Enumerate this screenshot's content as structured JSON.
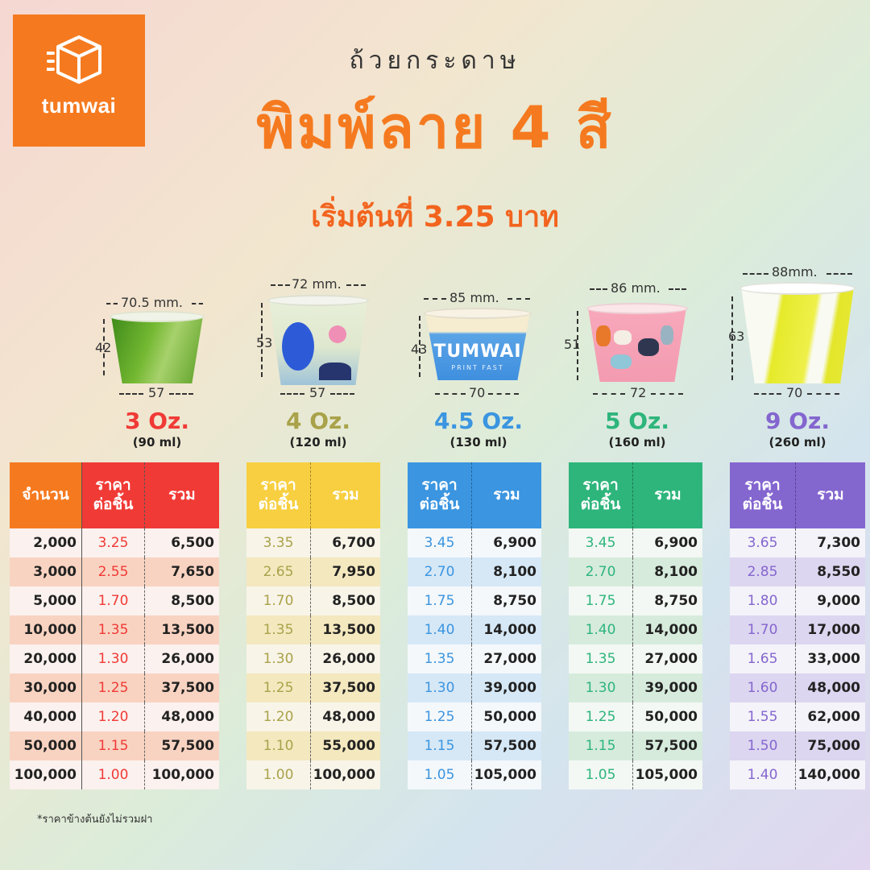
{
  "logo": {
    "text": "tumwai"
  },
  "heading": {
    "line1": "ถ้วยกระดาษ",
    "line2": "พิมพ์ลาย 4 สี",
    "line3": "เริ่มต้นที่ 3.25 บาท"
  },
  "colors": {
    "brand": "#f57a1f",
    "c3": "#f03a36",
    "c4": "#a9a24a",
    "c45": "#3b95e0",
    "c5": "#2eb57c",
    "c9": "#8466cf"
  },
  "cups": [
    {
      "top_dim": "70.5 mm.",
      "height_dim": "42",
      "bottom_dim": "57",
      "oz": "3 Oz.",
      "ml": "(90 ml)"
    },
    {
      "top_dim": "72 mm.",
      "height_dim": "53",
      "bottom_dim": "57",
      "oz": "4 Oz.",
      "ml": "(120 ml)"
    },
    {
      "top_dim": "85 mm.",
      "height_dim": "43",
      "bottom_dim": "70",
      "oz": "4.5 Oz.",
      "ml": "(130 ml)",
      "print": "TUMWAI",
      "print_sub": "PRINT FAST"
    },
    {
      "top_dim": "86 mm.",
      "height_dim": "51",
      "bottom_dim": "72",
      "oz": "5 Oz.",
      "ml": "(160 ml)"
    },
    {
      "top_dim": "88mm.",
      "height_dim": "63",
      "bottom_dim": "70",
      "oz": "9 Oz.",
      "ml": "(260 ml)"
    }
  ],
  "table_headers": {
    "qty": "จำนวน",
    "price": "ราคา\nต่อชิ้น",
    "total": "รวม"
  },
  "quantities": [
    "2,000",
    "3,000",
    "5,000",
    "10,000",
    "20,000",
    "30,000",
    "40,000",
    "50,000",
    "100,000"
  ],
  "tables": [
    {
      "prices": [
        "3.25",
        "2.55",
        "1.70",
        "1.35",
        "1.30",
        "1.25",
        "1.20",
        "1.15",
        "1.00"
      ],
      "totals": [
        "6,500",
        "7,650",
        "8,500",
        "13,500",
        "26,000",
        "37,500",
        "48,000",
        "57,500",
        "100,000"
      ]
    },
    {
      "prices": [
        "3.35",
        "2.65",
        "1.70",
        "1.35",
        "1.30",
        "1.25",
        "1.20",
        "1.10",
        "1.00"
      ],
      "totals": [
        "6,700",
        "7,950",
        "8,500",
        "13,500",
        "26,000",
        "37,500",
        "48,000",
        "55,000",
        "100,000"
      ]
    },
    {
      "prices": [
        "3.45",
        "2.70",
        "1.75",
        "1.40",
        "1.35",
        "1.30",
        "1.25",
        "1.15",
        "1.05"
      ],
      "totals": [
        "6,900",
        "8,100",
        "8,750",
        "14,000",
        "27,000",
        "39,000",
        "50,000",
        "57,500",
        "105,000"
      ]
    },
    {
      "prices": [
        "3.45",
        "2.70",
        "1.75",
        "1.40",
        "1.35",
        "1.30",
        "1.25",
        "1.15",
        "1.05"
      ],
      "totals": [
        "6,900",
        "8,100",
        "8,750",
        "14,000",
        "27,000",
        "39,000",
        "50,000",
        "57,500",
        "105,000"
      ]
    },
    {
      "prices": [
        "3.65",
        "2.85",
        "1.80",
        "1.70",
        "1.65",
        "1.60",
        "1.55",
        "1.50",
        "1.40"
      ],
      "totals": [
        "7,300",
        "8,550",
        "9,000",
        "17,000",
        "33,000",
        "48,000",
        "62,000",
        "75,000",
        "140,000"
      ]
    }
  ],
  "note": "*ราคาข้างต้นยังไม่รวมฝา"
}
